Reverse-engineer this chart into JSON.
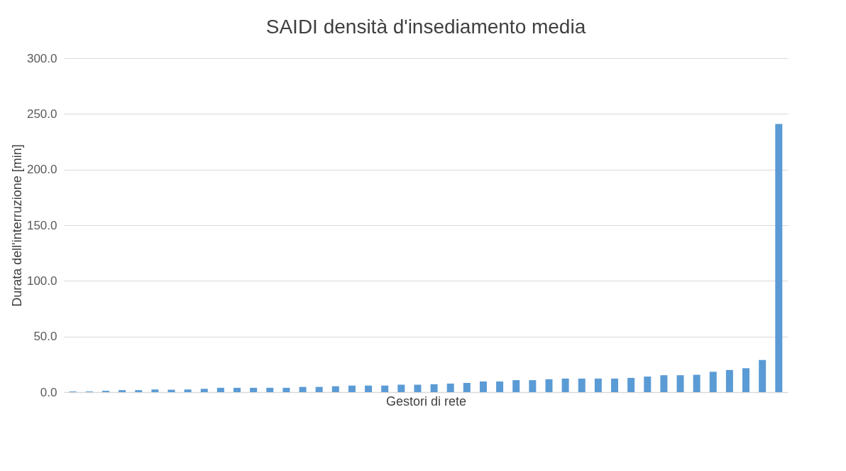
{
  "chart_data": {
    "type": "bar",
    "title": "SAIDI densità d'insediamento media",
    "xlabel": "Gestori di rete",
    "ylabel": "Durata dell'interruzione [min]",
    "categories": [
      null,
      null,
      null,
      null,
      null,
      null,
      null,
      null,
      null,
      null,
      null,
      null,
      null,
      null,
      null,
      null,
      null,
      null,
      null,
      null,
      null,
      null,
      null,
      null,
      null,
      null,
      null,
      null,
      null,
      null,
      null,
      null,
      null,
      null,
      null,
      null,
      null,
      null,
      null,
      null,
      null,
      null,
      null,
      null
    ],
    "values": [
      0.6,
      0.6,
      1.2,
      1.8,
      1.8,
      2.4,
      2.2,
      2.4,
      3.0,
      3.9,
      3.9,
      3.9,
      3.9,
      3.9,
      4.7,
      4.7,
      5.3,
      5.9,
      5.9,
      5.9,
      6.7,
      6.7,
      7.1,
      7.7,
      8.3,
      9.6,
      9.6,
      10.8,
      10.8,
      11.6,
      12.2,
      12.2,
      12.2,
      12.2,
      12.8,
      14.0,
      15.2,
      15.2,
      15.6,
      18.3,
      19.9,
      21.5,
      28.9,
      241
    ],
    "color": "#5b9bd5",
    "ylim": [
      0,
      300
    ],
    "yticks": [
      {
        "value": 0,
        "label": "0.0"
      },
      {
        "value": 50,
        "label": "50.0"
      },
      {
        "value": 100,
        "label": "100.0"
      },
      {
        "value": 150,
        "label": "150.0"
      },
      {
        "value": 200,
        "label": "200.0"
      },
      {
        "value": 250,
        "label": "250.0"
      },
      {
        "value": 300,
        "label": "300.0"
      }
    ],
    "grid": "y"
  }
}
